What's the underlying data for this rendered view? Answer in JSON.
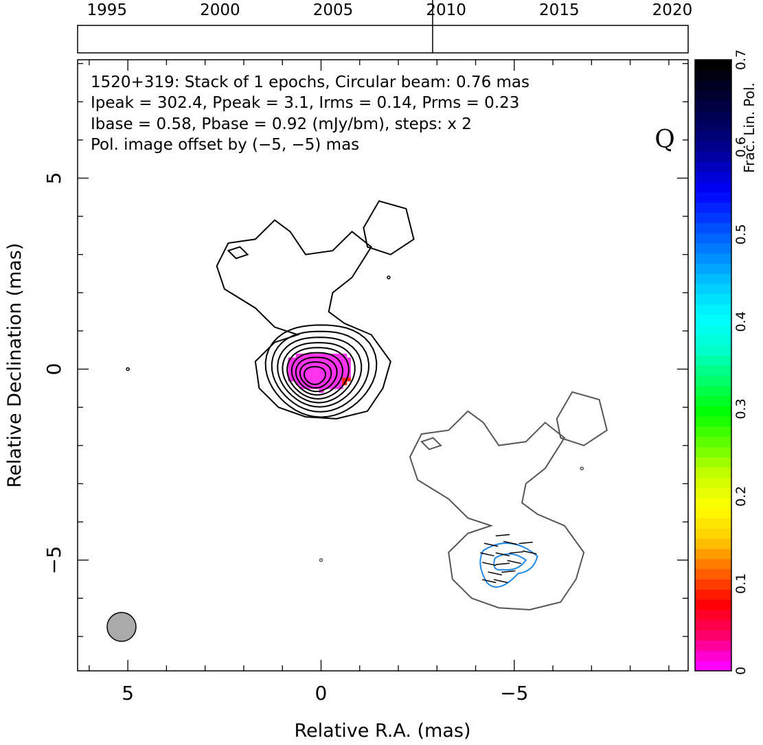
{
  "chart_data": {
    "type": "contour",
    "header": {
      "line1": "1520+319: Stack of 1 epochs, Circular beam: 0.76 mas",
      "line2": "Ipeak = 302.4, Ppeak = 3.1, Irms = 0.14, Prms = 0.23",
      "line3": "Ibase = 0.58, Pbase = 0.92 (mJy/bm), steps: x 2",
      "line4": "Pol. image offset by (−5, −5) mas",
      "line4_color": "#1e88e5"
    },
    "quality_letter": "Q",
    "xlabel": "Relative R.A. (mas)",
    "ylabel": "Relative Declination (mas)",
    "xlim": [
      6.3,
      -9.5
    ],
    "ylim": [
      -7.9,
      8.1
    ],
    "x_ticks": [
      {
        "value": 5,
        "label": "5"
      },
      {
        "value": 0,
        "label": "0"
      },
      {
        "value": -5,
        "label": "−5"
      }
    ],
    "y_ticks": [
      {
        "value": 5,
        "label": "5"
      },
      {
        "value": 0,
        "label": "0"
      },
      {
        "value": -5,
        "label": "−5"
      }
    ],
    "epoch_strip": {
      "years": [
        "1995",
        "2000",
        "2005",
        "2010",
        "2015",
        "2020"
      ],
      "range": [
        1993.7,
        2020.7
      ],
      "epochs": [
        2009.4
      ]
    },
    "colorbar": {
      "label": "Frac. Lin. Pol.",
      "range": [
        0,
        0.7
      ],
      "ticks": [
        "0",
        "0.1",
        "0.2",
        "0.3",
        "0.4",
        "0.5",
        "0.6",
        "0.7"
      ],
      "colors": [
        "#ff00ff",
        "#ff0066",
        "#ff0000",
        "#ff6600",
        "#ffcc00",
        "#ffff00",
        "#ccff00",
        "#66ff00",
        "#00ff00",
        "#00ff66",
        "#00ffcc",
        "#00ffff",
        "#00ccff",
        "#0088ff",
        "#0044ff",
        "#0000ff",
        "#0000aa",
        "#000066",
        "#000033",
        "#000000"
      ]
    },
    "beam_fwhm_mas": 0.76,
    "stokes_i_contours": {
      "peak_mjy_per_beam": 302.4,
      "base_mjy_per_beam": 0.58,
      "step_factor": 2,
      "core_offset_mas": [
        0,
        0
      ],
      "pol_offset_mas": [
        -5,
        -5
      ],
      "core_color": "#000000",
      "offset_color": "#555555",
      "pol_contour_color": "#1e88e5"
    },
    "frac_pol_pixels": {
      "core": 0.02,
      "edge": 0.1
    }
  }
}
